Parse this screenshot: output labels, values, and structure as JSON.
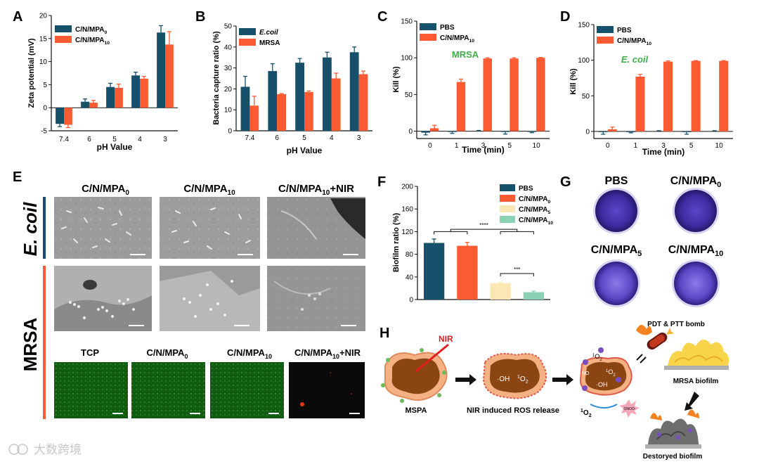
{
  "colors": {
    "navy": "#17506a",
    "orange": "#fc5a32",
    "cream": "#fbe7b4",
    "mint": "#8bd2b4",
    "purple": "#4a36b0",
    "green": "#1f7a1f",
    "accent_green": "#3fae49"
  },
  "chart_data": [
    {
      "id": "A",
      "type": "bar",
      "panel_label": "A",
      "xlabel": "pH Value",
      "ylabel": "Zeta potential (mV)",
      "categories": [
        "7.4",
        "6",
        "5",
        "4",
        "3"
      ],
      "ylim": [
        -5,
        20
      ],
      "yticks": [
        "-5",
        "0",
        "5",
        "10",
        "15",
        "20"
      ],
      "series": [
        {
          "name_main": "C/N/MPA",
          "name_sub": "0",
          "values": [
            -3.5,
            1.3,
            4.5,
            7.0,
            16.3
          ],
          "errors": [
            0.6,
            0.6,
            0.8,
            0.7,
            1.5
          ]
        },
        {
          "name_main": "C/N/MPA",
          "name_sub": "10",
          "values": [
            -3.7,
            1.1,
            4.3,
            6.3,
            13.7
          ],
          "errors": [
            0.6,
            0.5,
            0.8,
            0.5,
            2.8
          ]
        }
      ]
    },
    {
      "id": "B",
      "type": "bar",
      "panel_label": "B",
      "xlabel": "pH Value",
      "ylabel": "Bacteria capture ratio (%)",
      "categories": [
        "7.4",
        "6",
        "5",
        "4",
        "3"
      ],
      "ylim": [
        0,
        50
      ],
      "yticks": [
        "0",
        "10",
        "20",
        "30",
        "40",
        "50"
      ],
      "series": [
        {
          "name_main": "E.coil",
          "name_sub": "",
          "values": [
            21,
            28.5,
            32.5,
            35,
            37.5
          ],
          "errors": [
            5,
            3.5,
            2,
            2.5,
            2.5
          ]
        },
        {
          "name_main": "MRSA",
          "name_sub": "",
          "values": [
            12,
            17.5,
            18.5,
            25,
            27
          ],
          "errors": [
            4.5,
            0.3,
            0.5,
            2.5,
            1.5
          ]
        }
      ]
    },
    {
      "id": "C",
      "type": "bar",
      "panel_label": "C",
      "xlabel": "Time (min)",
      "ylabel": "Kill (%)",
      "annotation": "MRSA",
      "categories": [
        "0",
        "1",
        "3",
        "5",
        "10"
      ],
      "ylim": [
        -10,
        150
      ],
      "yticks": [
        "0",
        "50",
        "100",
        "150"
      ],
      "series": [
        {
          "name_main": "PBS",
          "name_sub": "",
          "values": [
            -2,
            -1,
            0,
            -1,
            -1
          ],
          "errors": [
            3,
            2,
            1,
            3,
            1
          ]
        },
        {
          "name_main": "C/N/MPA",
          "name_sub": "10",
          "values": [
            4,
            67,
            99,
            99,
            100
          ],
          "errors": [
            4,
            4,
            1,
            1,
            0.5
          ]
        }
      ]
    },
    {
      "id": "D",
      "type": "bar",
      "panel_label": "D",
      "xlabel": "Time (min)",
      "ylabel": "Kill (%)",
      "annotation": "E. coil",
      "categories": [
        "0",
        "1",
        "3",
        "5",
        "10"
      ],
      "ylim": [
        -10,
        150
      ],
      "yticks": [
        "0",
        "50",
        "100",
        "150"
      ],
      "series": [
        {
          "name_main": "PBS",
          "name_sub": "",
          "values": [
            -1,
            -1,
            0,
            -1,
            0
          ],
          "errors": [
            3,
            1,
            1,
            3,
            1
          ]
        },
        {
          "name_main": "C/N/MPA",
          "name_sub": "10",
          "values": [
            3,
            77,
            98,
            99,
            99
          ],
          "errors": [
            3,
            3,
            1,
            0.5,
            0.5
          ]
        }
      ]
    },
    {
      "id": "F",
      "type": "bar",
      "panel_label": "F",
      "xlabel": "",
      "ylabel": "Biofilm ratio (%)",
      "categories": [
        "PBS",
        "C/N/MPA0",
        "C/N/MPA5",
        "C/N/MPA10"
      ],
      "ylim": [
        0,
        200
      ],
      "yticks": [
        "0",
        "40",
        "80",
        "120",
        "160",
        "200"
      ],
      "values": [
        100,
        95,
        29,
        13
      ],
      "errors": [
        7,
        6,
        1.5,
        2
      ],
      "legend": [
        {
          "name_main": "PBS",
          "name_sub": ""
        },
        {
          "name_main": "C/N/MPA",
          "name_sub": "0"
        },
        {
          "name_main": "C/N/MPA",
          "name_sub": "5"
        },
        {
          "name_main": "C/N/MPA",
          "name_sub": "10"
        }
      ],
      "significance": [
        "****",
        "***"
      ]
    }
  ],
  "panel_e": {
    "label": "E",
    "columns": [
      {
        "main": "C/N/MPA",
        "sub": "0",
        "suffix": ""
      },
      {
        "main": "C/N/MPA",
        "sub": "10",
        "suffix": ""
      },
      {
        "main": "C/N/MPA",
        "sub": "10",
        "suffix": "+NIR"
      }
    ],
    "rows": [
      "E. coil",
      "MRSA"
    ],
    "fluor_labels": [
      {
        "main": "TCP",
        "sub": "",
        "suffix": ""
      },
      {
        "main": "C/N/MPA",
        "sub": "0",
        "suffix": ""
      },
      {
        "main": "C/N/MPA",
        "sub": "10",
        "suffix": ""
      },
      {
        "main": "C/N/MPA",
        "sub": "10",
        "suffix": "+NIR"
      }
    ]
  },
  "panel_g": {
    "label": "G",
    "wells": [
      {
        "main": "PBS",
        "sub": ""
      },
      {
        "main": "C/N/MPA",
        "sub": "0"
      },
      {
        "main": "C/N/MPA",
        "sub": "5"
      },
      {
        "main": "C/N/MPA",
        "sub": "10"
      }
    ]
  },
  "panel_h": {
    "label": "H",
    "nir": "NIR",
    "mspa": "MSPA",
    "ros_release": "NIR induced ROS release",
    "bomb": "PDT & PTT bomb",
    "mrsa_biofilm": "MRSA biofilm",
    "destroyed": "Destoryed biofilm",
    "oh": "·OH",
    "o2": "O",
    "o2_sup": "1",
    "o2_sub": "2",
    "oh_dead": "·OH",
    "onoo": "ONOO-",
    "no": "NO"
  },
  "watermark": "大数跨境"
}
